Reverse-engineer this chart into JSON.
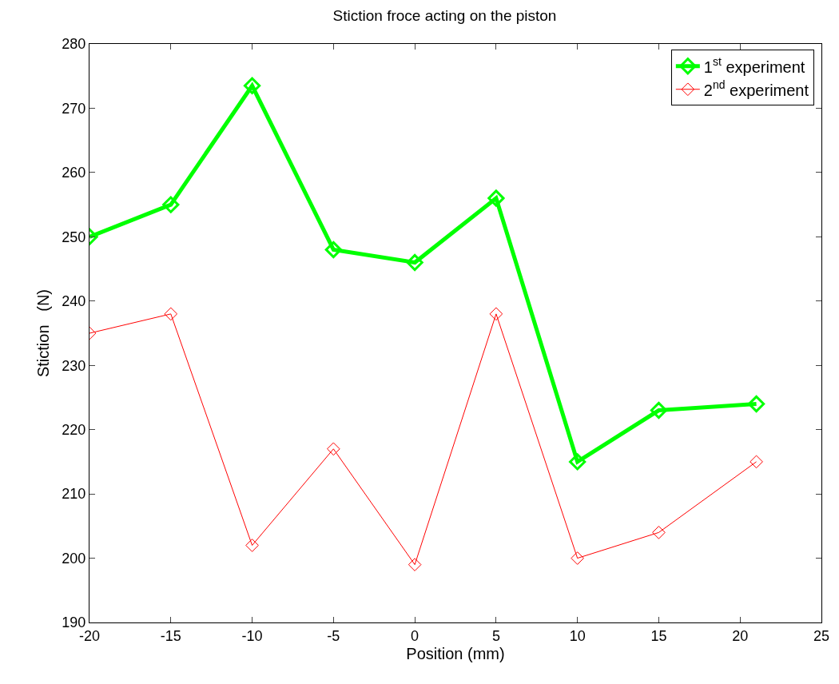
{
  "chart_data": {
    "type": "line",
    "title": "Stiction froce acting on the piston",
    "xlabel": "Position (mm)",
    "ylabel": "Stiction   (N)",
    "x": [
      -20,
      -15,
      -10,
      -5,
      0,
      5,
      10,
      15,
      21
    ],
    "series": [
      {
        "name": "1$^{st}$ experiment",
        "color": "#00ff00",
        "values": [
          250,
          255,
          273.5,
          248,
          246,
          256,
          215,
          223,
          224
        ]
      },
      {
        "name": "2$^{nd}$ experiment",
        "color": "#ff0000",
        "values": [
          235,
          238,
          202,
          217,
          199,
          238,
          200,
          204,
          215
        ]
      }
    ],
    "xlim": [
      -20,
      25
    ],
    "xticks": [
      -20,
      -15,
      -10,
      -5,
      0,
      5,
      10,
      15,
      20,
      25
    ],
    "ylim": [
      190,
      280
    ],
    "yticks": [
      190,
      200,
      210,
      220,
      230,
      240,
      250,
      260,
      270,
      280
    ],
    "grid": false,
    "legend": "top right",
    "marker": "diamond",
    "line_style": "solid"
  }
}
